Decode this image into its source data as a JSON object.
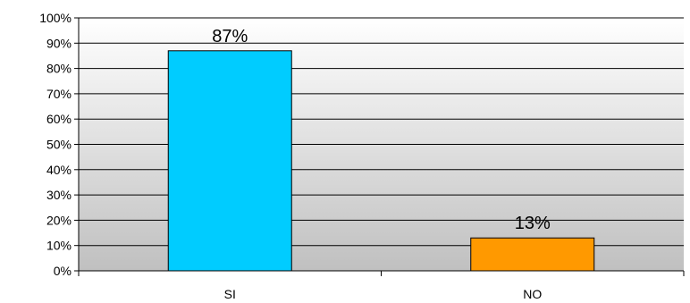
{
  "chart_data": {
    "type": "bar",
    "categories": [
      "SI",
      "NO"
    ],
    "values": [
      87,
      13
    ],
    "data_labels": [
      "87%",
      "13%"
    ],
    "ylim": [
      0,
      100
    ],
    "yticks": [
      0,
      10,
      20,
      30,
      40,
      50,
      60,
      70,
      80,
      90,
      100
    ],
    "ytick_labels": [
      "0%",
      "10%",
      "20%",
      "30%",
      "40%",
      "50%",
      "60%",
      "70%",
      "80%",
      "90%",
      "100%"
    ],
    "grid": true,
    "legend": "none",
    "title": "",
    "xlabel": "",
    "ylabel": "",
    "colors": {
      "bars": [
        "#00ccff",
        "#ff9900"
      ],
      "plot_background": "#c0c0c0",
      "gridline": "#000000",
      "bar_outline": "#000000"
    }
  }
}
